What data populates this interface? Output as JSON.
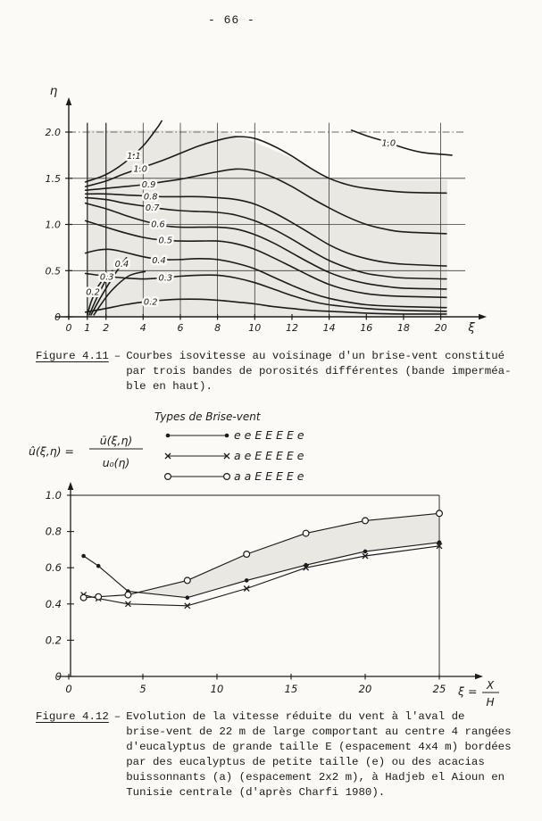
{
  "page": {
    "number": "- 66 -"
  },
  "figure1": {
    "caption_label": "Figure 4.11",
    "caption_sep": "–",
    "caption_lines": [
      "Courbes isovitesse au voisinage d'un brise-vent constitué",
      "par trois bandes de porosités différentes (bande imperméa-",
      "ble en haut)."
    ]
  },
  "figure2": {
    "caption_label": "Figure 4.12",
    "caption_sep": "–",
    "caption_lines": [
      "Evolution de la vitesse réduite du vent à l'aval de",
      "brise-vent de 22 m de large comportant au centre 4 rangées",
      "d'eucalyptus de grande taille E (espacement 4x4 m) bordées",
      "par des eucalyptus de petite taille (e) ou des acacias",
      "buissonnants (a) (espacement 2x2 m), à Hadjeb el Aioun en",
      "Tunisie centrale (d'après Charfi 1980)."
    ]
  },
  "colors": {
    "ink": "#1c1c1c",
    "page": "#fbfaf6",
    "shade": "#e9e8e2",
    "grid": "#3c3c3c"
  },
  "chart_data": [
    {
      "id": "fig-4-11",
      "type": "contour",
      "title": "",
      "xlabel": "ξ",
      "ylabel": "η",
      "xlim": [
        0,
        21.5
      ],
      "ylim": [
        0,
        2.3
      ],
      "grid": true,
      "x_ticks": [
        0,
        1,
        2,
        4,
        6,
        8,
        10,
        12,
        14,
        16,
        18,
        20
      ],
      "y_ticks": [
        "0",
        "0.5",
        "1.0",
        "1.5",
        "2.0"
      ],
      "x_gridlines": [
        1,
        2,
        4,
        6,
        8,
        10,
        14,
        20
      ],
      "y_gridlines": [
        0.5,
        1.0,
        1.5,
        2.0
      ],
      "shade_polygon": [
        [
          0.95,
          0
        ],
        [
          0.95,
          2.02
        ],
        [
          8,
          2.02
        ],
        [
          9.5,
          1.93
        ],
        [
          12,
          1.72
        ],
        [
          14,
          1.5
        ],
        [
          16,
          1.48
        ],
        [
          20.35,
          1.48
        ],
        [
          20.35,
          0
        ]
      ],
      "contours": [
        {
          "level": "1.1",
          "label_at": [
            3.5,
            1.74
          ],
          "points": [
            [
              0.9,
              1.46
            ],
            [
              2,
              1.54
            ],
            [
              3,
              1.67
            ],
            [
              4,
              1.85
            ],
            [
              4.7,
              2.03
            ],
            [
              5.0,
              2.12
            ]
          ]
        },
        {
          "level": "1.0",
          "label_at": [
            3.85,
            1.6
          ],
          "points": [
            [
              0.9,
              1.41
            ],
            [
              2,
              1.47
            ],
            [
              3,
              1.55
            ],
            [
              5,
              1.69
            ],
            [
              6,
              1.77
            ],
            [
              7,
              1.85
            ],
            [
              8,
              1.91
            ],
            [
              9,
              1.95
            ],
            [
              10,
              1.93
            ],
            [
              11,
              1.85
            ],
            [
              12,
              1.74
            ],
            [
              13,
              1.61
            ],
            [
              14,
              1.5
            ],
            [
              15,
              1.43
            ],
            [
              16,
              1.39
            ],
            [
              18,
              1.35
            ],
            [
              20.3,
              1.34
            ]
          ]
        },
        {
          "level": "0.9",
          "label_at": [
            4.3,
            1.43
          ],
          "points": [
            [
              0.9,
              1.37
            ],
            [
              2,
              1.39
            ],
            [
              3,
              1.41
            ],
            [
              4,
              1.43
            ],
            [
              5,
              1.46
            ],
            [
              6,
              1.49
            ],
            [
              7,
              1.53
            ],
            [
              8,
              1.57
            ],
            [
              9,
              1.6
            ],
            [
              10,
              1.58
            ],
            [
              11,
              1.51
            ],
            [
              12,
              1.41
            ],
            [
              13,
              1.29
            ],
            [
              14,
              1.18
            ],
            [
              15,
              1.08
            ],
            [
              16,
              1.0
            ],
            [
              17,
              0.95
            ],
            [
              18,
              0.92
            ],
            [
              20.3,
              0.9
            ]
          ]
        },
        {
          "level": "0.8",
          "label_at": [
            4.4,
            1.3
          ],
          "points": [
            [
              0.9,
              1.33
            ],
            [
              2,
              1.33
            ],
            [
              3,
              1.32
            ],
            [
              4,
              1.31
            ],
            [
              5,
              1.3
            ],
            [
              6,
              1.3
            ],
            [
              7,
              1.3
            ],
            [
              8,
              1.29
            ],
            [
              9,
              1.27
            ],
            [
              10,
              1.22
            ],
            [
              11,
              1.13
            ],
            [
              12,
              1.02
            ],
            [
              13,
              0.9
            ],
            [
              14,
              0.78
            ],
            [
              15,
              0.69
            ],
            [
              16,
              0.63
            ],
            [
              17,
              0.59
            ],
            [
              18,
              0.57
            ],
            [
              20.3,
              0.55
            ]
          ]
        },
        {
          "level": "0.7",
          "label_at": [
            4.5,
            1.18
          ],
          "points": [
            [
              0.9,
              1.29
            ],
            [
              2,
              1.27
            ],
            [
              3,
              1.23
            ],
            [
              4,
              1.2
            ],
            [
              5,
              1.17
            ],
            [
              6,
              1.15
            ],
            [
              7,
              1.14
            ],
            [
              8,
              1.13
            ],
            [
              9,
              1.1
            ],
            [
              10,
              1.04
            ],
            [
              11,
              0.95
            ],
            [
              12,
              0.84
            ],
            [
              13,
              0.72
            ],
            [
              14,
              0.61
            ],
            [
              15,
              0.53
            ],
            [
              16,
              0.47
            ],
            [
              17,
              0.44
            ],
            [
              18,
              0.42
            ],
            [
              20.3,
              0.41
            ]
          ]
        },
        {
          "level": "0.6",
          "label_at": [
            4.8,
            1.0
          ],
          "points": [
            [
              0.9,
              1.23
            ],
            [
              2,
              1.17
            ],
            [
              3,
              1.1
            ],
            [
              4,
              1.04
            ],
            [
              5,
              0.99
            ],
            [
              6,
              0.97
            ],
            [
              7,
              0.97
            ],
            [
              8,
              0.97
            ],
            [
              9,
              0.95
            ],
            [
              10,
              0.89
            ],
            [
              11,
              0.8
            ],
            [
              12,
              0.69
            ],
            [
              13,
              0.58
            ],
            [
              14,
              0.48
            ],
            [
              15,
              0.41
            ],
            [
              16,
              0.36
            ],
            [
              17,
              0.33
            ],
            [
              18,
              0.31
            ],
            [
              20.3,
              0.3
            ]
          ]
        },
        {
          "level": "0.5",
          "label_at": [
            5.2,
            0.83
          ],
          "points": [
            [
              0.9,
              1.04
            ],
            [
              2,
              0.97
            ],
            [
              3,
              0.91
            ],
            [
              4,
              0.86
            ],
            [
              5,
              0.83
            ],
            [
              6,
              0.82
            ],
            [
              7,
              0.82
            ],
            [
              8,
              0.82
            ],
            [
              9,
              0.79
            ],
            [
              10,
              0.73
            ],
            [
              11,
              0.64
            ],
            [
              12,
              0.54
            ],
            [
              13,
              0.44
            ],
            [
              14,
              0.35
            ],
            [
              15,
              0.29
            ],
            [
              16,
              0.25
            ],
            [
              17,
              0.23
            ],
            [
              18,
              0.22
            ],
            [
              20.3,
              0.21
            ]
          ]
        },
        {
          "level": "0.4",
          "label_at": [
            4.85,
            0.61
          ],
          "points": [
            [
              0.9,
              0.69
            ],
            [
              1.5,
              0.72
            ],
            [
              2.2,
              0.73
            ],
            [
              3,
              0.7
            ],
            [
              4,
              0.65
            ],
            [
              5,
              0.62
            ],
            [
              6,
              0.62
            ],
            [
              7,
              0.63
            ],
            [
              8,
              0.62
            ],
            [
              9,
              0.58
            ],
            [
              10,
              0.52
            ],
            [
              11,
              0.43
            ],
            [
              12,
              0.34
            ],
            [
              13,
              0.26
            ],
            [
              14,
              0.2
            ],
            [
              15,
              0.16
            ],
            [
              16,
              0.13
            ],
            [
              18,
              0.11
            ],
            [
              20.3,
              0.1
            ]
          ]
        },
        {
          "level": "0.3",
          "label_at": [
            5.2,
            0.42
          ],
          "points": [
            [
              0.9,
              0.47
            ],
            [
              2,
              0.44
            ],
            [
              3,
              0.42
            ],
            [
              4,
              0.41
            ],
            [
              5,
              0.42
            ],
            [
              6,
              0.44
            ],
            [
              7,
              0.45
            ],
            [
              8,
              0.45
            ],
            [
              9,
              0.42
            ],
            [
              10,
              0.37
            ],
            [
              11,
              0.3
            ],
            [
              12,
              0.23
            ],
            [
              13,
              0.17
            ],
            [
              14,
              0.13
            ],
            [
              16,
              0.09
            ],
            [
              18,
              0.07
            ],
            [
              20.3,
              0.06
            ]
          ]
        },
        {
          "level": "0.2",
          "label_at": [
            4.4,
            0.16
          ],
          "points": [
            [
              0.9,
              0.05
            ],
            [
              2,
              0.09
            ],
            [
              3,
              0.13
            ],
            [
              4,
              0.16
            ],
            [
              5,
              0.18
            ],
            [
              6,
              0.19
            ],
            [
              7,
              0.19
            ],
            [
              8,
              0.18
            ],
            [
              9,
              0.16
            ],
            [
              10,
              0.14
            ],
            [
              11,
              0.11
            ],
            [
              12,
              0.09
            ],
            [
              13,
              0.07
            ],
            [
              14,
              0.06
            ],
            [
              16,
              0.04
            ],
            [
              18,
              0.03
            ],
            [
              20.3,
              0.03
            ]
          ]
        },
        {
          "level": "1,0",
          "label_at": [
            17.2,
            1.88
          ],
          "points": [
            [
              15.2,
              2.02
            ],
            [
              16,
              1.96
            ],
            [
              17,
              1.9
            ],
            [
              18,
              1.83
            ],
            [
              19,
              1.78
            ],
            [
              20,
              1.76
            ],
            [
              20.6,
              1.75
            ]
          ]
        },
        {
          "level": "0.2",
          "label_at": [
            1.3,
            0.27
          ],
          "points": [
            [
              1.0,
              0.02
            ],
            [
              1.2,
              0.16
            ],
            [
              1.5,
              0.3
            ],
            [
              1.75,
              0.38
            ]
          ]
        },
        {
          "level": "0.3",
          "label_at": [
            2.05,
            0.43
          ],
          "points": [
            [
              1.1,
              0.02
            ],
            [
              1.5,
              0.2
            ],
            [
              2.0,
              0.4
            ],
            [
              2.35,
              0.5
            ]
          ]
        },
        {
          "level": "0.4",
          "label_at": [
            2.85,
            0.57
          ],
          "points": [
            [
              1.2,
              0.02
            ],
            [
              1.8,
              0.24
            ],
            [
              2.6,
              0.5
            ],
            [
              3.1,
              0.64
            ]
          ]
        },
        {
          "level": "",
          "label_at": null,
          "points": [
            [
              1.35,
              0.02
            ],
            [
              2.2,
              0.26
            ],
            [
              3.2,
              0.44
            ],
            [
              4.1,
              0.49
            ]
          ]
        }
      ]
    },
    {
      "id": "fig-4-12",
      "type": "line",
      "title": "",
      "legend_title": "Types de Brise-vent",
      "legend_position": "top",
      "x": [
        1,
        2,
        4,
        8,
        12,
        16,
        20,
        25
      ],
      "series": [
        {
          "name": "e e E E E E e",
          "marker": "dot",
          "values": [
            0.665,
            0.61,
            0.47,
            0.435,
            0.53,
            0.615,
            0.69,
            0.74
          ]
        },
        {
          "name": "a e E E E E e",
          "marker": "x",
          "values": [
            0.45,
            0.43,
            0.4,
            0.39,
            0.485,
            0.6,
            0.665,
            0.72
          ]
        },
        {
          "name": "a a E E E E e",
          "marker": "circle",
          "values": [
            0.435,
            0.44,
            0.45,
            0.53,
            0.675,
            0.79,
            0.86,
            0.9
          ]
        }
      ],
      "x_ticks": [
        0,
        5,
        10,
        15,
        20,
        25
      ],
      "y_ticks": [
        "0",
        "0.2",
        "0.4",
        "0.6",
        "0.8",
        "1.0"
      ],
      "xlim": [
        0,
        26
      ],
      "ylim": [
        0,
        1.1
      ],
      "grid": false,
      "ref_h_line": 1.0,
      "ref_v_line": 25,
      "band_polygon": [
        [
          4.8,
          0.46
        ],
        [
          8,
          0.53
        ],
        [
          12,
          0.675
        ],
        [
          16,
          0.79
        ],
        [
          20,
          0.86
        ],
        [
          25,
          0.9
        ],
        [
          25,
          0.74
        ],
        [
          20,
          0.69
        ],
        [
          16,
          0.615
        ],
        [
          12,
          0.53
        ],
        [
          8,
          0.435
        ]
      ],
      "ylabel_formula": {
        "lhs": "û(ξ,η) =",
        "num": "ū(ξ,η)",
        "den": "u₀(η)"
      },
      "xlabel_formula": {
        "lhs": "ξ =",
        "num": "X",
        "den": "H"
      }
    }
  ]
}
